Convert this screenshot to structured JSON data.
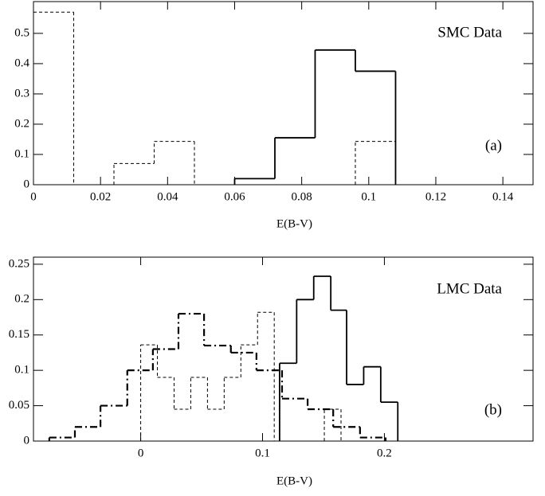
{
  "chart_data": [
    {
      "type": "histogram",
      "xlabel": "E(B-V)",
      "annotations": [
        "SMC Data",
        "(a)"
      ],
      "xlim": [
        0,
        0.149
      ],
      "ylim": [
        0,
        0.605
      ],
      "xticks": [
        0,
        0.02,
        0.04,
        0.06,
        0.08,
        0.1,
        0.12,
        0.14
      ],
      "yticks": [
        0,
        0.1,
        0.2,
        0.3,
        0.4,
        0.5
      ],
      "series": [
        {
          "color": "#000000",
          "dash": "dashed",
          "bins": [
            0,
            0.012,
            0.024,
            0.036,
            0.048,
            0.06,
            0.072,
            0.084,
            0.096,
            0.108
          ],
          "values": [
            0.57,
            0,
            0.07,
            0.143,
            0,
            0,
            0,
            0,
            0.143
          ]
        },
        {
          "color": "#000000",
          "dash": "solid",
          "bins": [
            0.06,
            0.072,
            0.084,
            0.096,
            0.108
          ],
          "values": [
            0.02,
            0.155,
            0.445,
            0.375
          ]
        }
      ]
    },
    {
      "type": "histogram",
      "xlabel": "E(B-V)",
      "annotations": [
        "LMC Data",
        "(b)"
      ],
      "xlim": [
        -0.088,
        0.322
      ],
      "ylim": [
        0,
        0.26
      ],
      "xticks": [
        0,
        0.1,
        0.2
      ],
      "yticks": [
        0,
        0.05,
        0.1,
        0.15,
        0.2,
        0.25
      ],
      "series": [
        {
          "color": "#000000",
          "dash": "dashdot",
          "bins": [
            -0.075,
            -0.054,
            -0.033,
            -0.011,
            0.01,
            0.031,
            0.052,
            0.074,
            0.095,
            0.116,
            0.137,
            0.158,
            0.18,
            0.201
          ],
          "values": [
            0.005,
            0.02,
            0.05,
            0.1,
            0.13,
            0.18,
            0.135,
            0.125,
            0.1,
            0.06,
            0.045,
            0.02,
            0.005
          ]
        },
        {
          "color": "#000000",
          "dash": "dashed",
          "bins": [
            0,
            0.0137,
            0.0274,
            0.0411,
            0.0548,
            0.0685,
            0.0822,
            0.0959,
            0.1096,
            0.1233,
            0.137,
            0.1507,
            0.1644
          ],
          "values": [
            0.136,
            0.09,
            0.045,
            0.09,
            0.045,
            0.09,
            0.136,
            0.182,
            0,
            0,
            0,
            0.045
          ]
        },
        {
          "color": "#000000",
          "dash": "solid",
          "bins": [
            0.114,
            0.128,
            0.142,
            0.156,
            0.169,
            0.183,
            0.197,
            0.211
          ],
          "values": [
            0.11,
            0.2,
            0.233,
            0.185,
            0.08,
            0.105,
            0.055
          ]
        }
      ]
    }
  ]
}
